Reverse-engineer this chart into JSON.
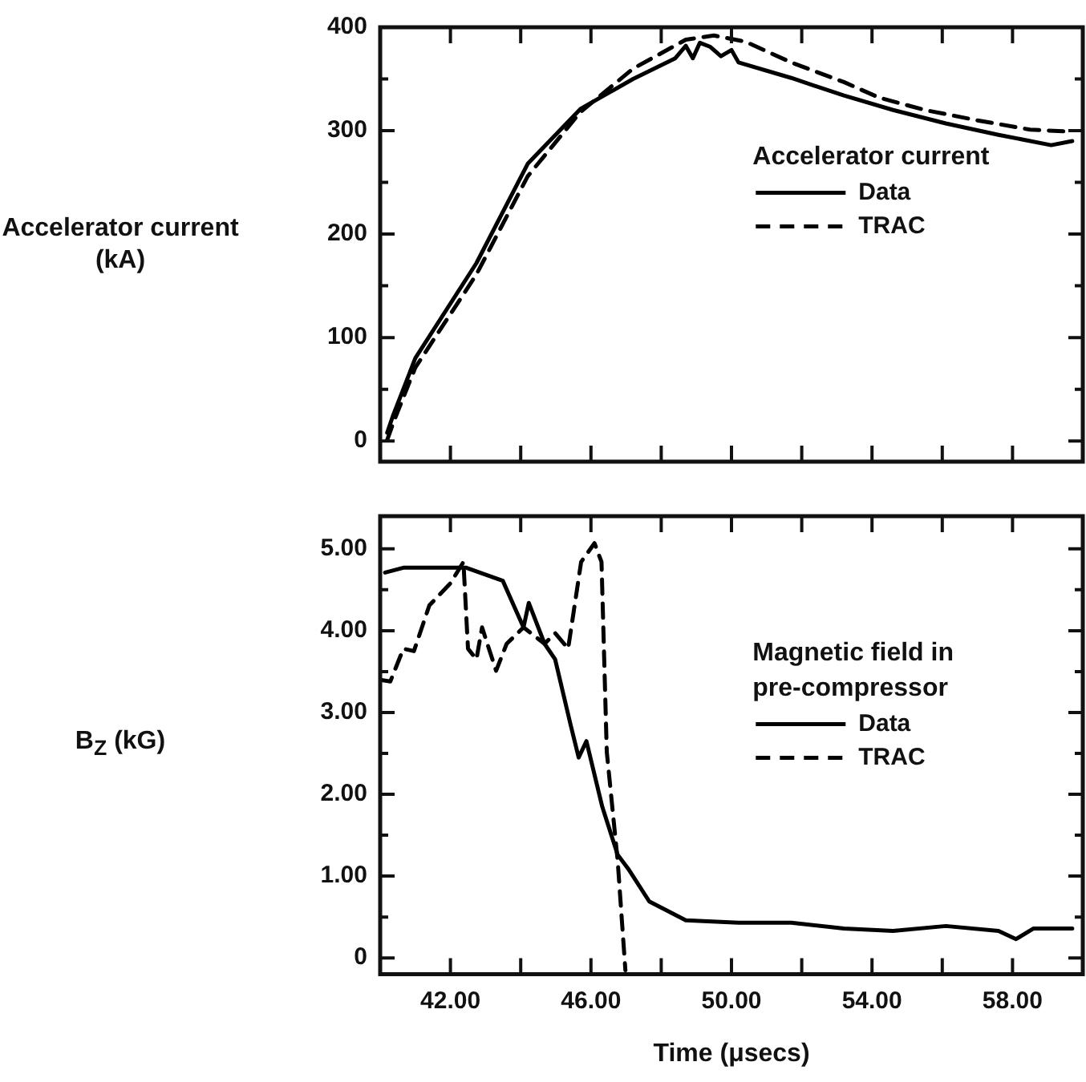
{
  "chart_data": [
    {
      "type": "line",
      "ylabel": "Accelerator current (kA)",
      "legend_title": "Accelerator current",
      "legend": "right",
      "grid": false,
      "marker": "none",
      "tick_labels": "y",
      "xlim": [
        40,
        60
      ],
      "xticks": [
        {
          "value": 42,
          "label": null
        },
        {
          "value": 44,
          "label": null
        },
        {
          "value": 46,
          "label": null
        },
        {
          "value": 48,
          "label": null
        },
        {
          "value": 50,
          "label": null
        },
        {
          "value": 52,
          "label": null
        },
        {
          "value": 54,
          "label": null
        },
        {
          "value": 56,
          "label": null
        },
        {
          "value": 58,
          "label": null
        }
      ],
      "ylim": [
        -20,
        400
      ],
      "yticks": [
        0,
        {
          "value": 50,
          "label": null
        },
        100,
        {
          "value": 150,
          "label": null
        },
        200,
        {
          "value": 250,
          "label": null
        },
        300,
        {
          "value": 350,
          "label": null
        },
        400
      ],
      "series": [
        {
          "name": "Data",
          "color": "#000000",
          "line_style": "solid",
          "x": [
            40.2,
            40.36,
            41.0,
            42.74,
            44.2,
            45.7,
            47.2,
            48.4,
            48.7,
            48.9,
            49.1,
            49.4,
            49.7,
            50.0,
            50.2,
            51.7,
            53.2,
            54.6,
            56.1,
            57.6,
            59.1,
            59.7
          ],
          "values": [
            8,
            24,
            80,
            172,
            268,
            321,
            350,
            370,
            382,
            370,
            385,
            381,
            372,
            378,
            366,
            351,
            334,
            320,
            307,
            296,
            286,
            290
          ]
        },
        {
          "name": "TRAC",
          "color": "#000000",
          "line_style": "dashed",
          "x": [
            40.2,
            40.4,
            41.0,
            42.74,
            44.2,
            45.7,
            47.2,
            48.7,
            49.5,
            50.4,
            51.7,
            53.2,
            54.2,
            55.5,
            57.0,
            58.5,
            59.7
          ],
          "values": [
            1,
            20,
            71,
            161,
            256,
            318,
            360,
            388,
            392,
            386,
            366,
            347,
            332,
            320,
            310,
            301,
            299
          ]
        }
      ]
    },
    {
      "type": "line",
      "ylabel": "B$_{Z}$ (kG)",
      "xlabel": "Time (μsecs)",
      "legend_title": "Magnetic field in pre-compressor",
      "legend": "right",
      "grid": false,
      "marker": "none",
      "xlim": [
        40,
        60
      ],
      "xticks": [
        {
          "value": 42,
          "label": "42.00"
        },
        {
          "value": 44,
          "label": null
        },
        {
          "value": 46,
          "label": "46.00"
        },
        {
          "value": 48,
          "label": null
        },
        {
          "value": 50,
          "label": "50.00"
        },
        {
          "value": 52,
          "label": null
        },
        {
          "value": 54,
          "label": "54.00"
        },
        {
          "value": 56,
          "label": null
        },
        {
          "value": 58,
          "label": "58.00"
        }
      ],
      "ylim": [
        -0.2,
        5.4
      ],
      "yticks": [
        0,
        {
          "value": 0.5,
          "label": null
        },
        {
          "value": 1,
          "label": "1.00"
        },
        {
          "value": 1.5,
          "label": null
        },
        {
          "value": 2,
          "label": "2.00"
        },
        {
          "value": 2.5,
          "label": null
        },
        {
          "value": 3,
          "label": "3.00"
        },
        {
          "value": 3.5,
          "label": null
        },
        {
          "value": 4,
          "label": "4.00"
        },
        {
          "value": 4.5,
          "label": null
        },
        {
          "value": 5,
          "label": "5.00"
        }
      ],
      "series": [
        {
          "name": "Data",
          "color": "#000000",
          "line_style": "solid",
          "x": [
            40.14,
            40.66,
            42.45,
            43.49,
            43.8,
            44.08,
            44.23,
            44.68,
            44.98,
            45.42,
            45.65,
            45.87,
            46.32,
            46.76,
            47.06,
            47.66,
            48.7,
            50.2,
            51.7,
            53.2,
            54.6,
            56.1,
            57.6,
            58.1,
            58.6,
            59.7
          ],
          "values": [
            4.71,
            4.77,
            4.77,
            4.61,
            4.31,
            4.04,
            4.34,
            3.84,
            3.65,
            2.85,
            2.45,
            2.65,
            1.85,
            1.26,
            1.09,
            0.69,
            0.46,
            0.43,
            0.43,
            0.36,
            0.33,
            0.39,
            0.33,
            0.23,
            0.36,
            0.36
          ]
        },
        {
          "name": "TRAC",
          "color": "#000000",
          "line_style": "dashed",
          "x": [
            40.0,
            40.29,
            40.66,
            40.96,
            41.4,
            42.0,
            42.37,
            42.5,
            42.74,
            42.9,
            43.3,
            43.6,
            44.08,
            44.68,
            44.98,
            45.35,
            45.72,
            46.1,
            46.3,
            46.45,
            46.76,
            46.98
          ],
          "values": [
            3.4,
            3.38,
            3.78,
            3.75,
            4.31,
            4.58,
            4.84,
            3.78,
            3.65,
            4.04,
            3.51,
            3.84,
            4.04,
            3.84,
            3.97,
            3.78,
            4.84,
            5.07,
            4.84,
            2.52,
            1.19,
            -0.15
          ]
        }
      ]
    }
  ]
}
